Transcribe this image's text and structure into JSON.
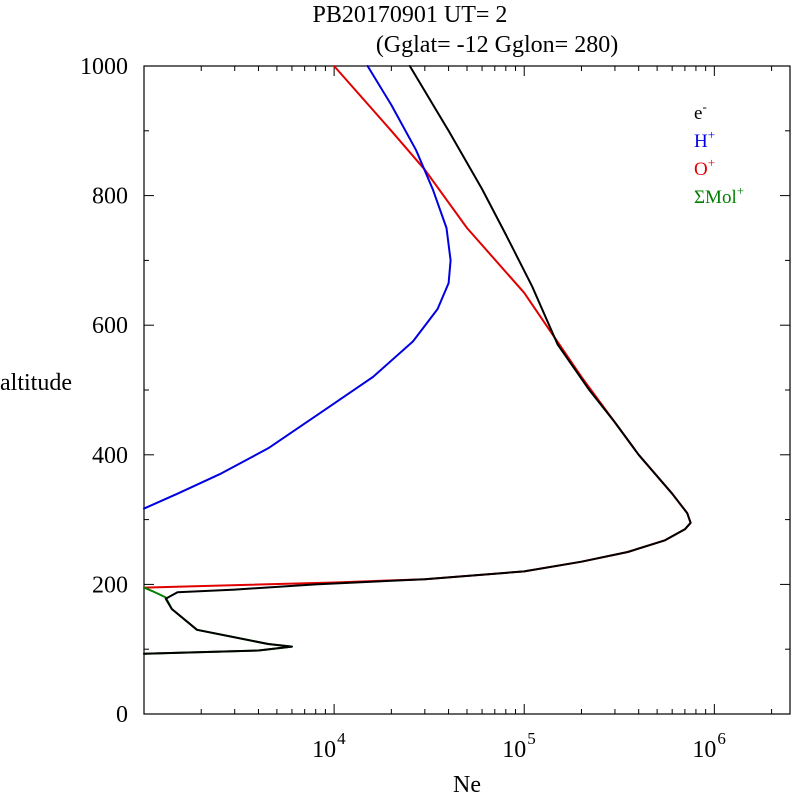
{
  "chart_data": {
    "type": "line",
    "title": "PB20170901   UT=  2",
    "subtitle": "(Gglat= -12   Gglon=  280)",
    "xlabel": "Ne",
    "ylabel": "altitude",
    "x_scale": "log",
    "xlim": [
      1000,
      2500000
    ],
    "ylim": [
      0,
      1000
    ],
    "x_ticks": [
      {
        "value": 10000,
        "base": "10",
        "exp": "4"
      },
      {
        "value": 100000,
        "base": "10",
        "exp": "5"
      },
      {
        "value": 1000000,
        "base": "10",
        "exp": "6"
      }
    ],
    "y_ticks": [
      {
        "value": 0,
        "label": "0"
      },
      {
        "value": 200,
        "label": "200"
      },
      {
        "value": 400,
        "label": "400"
      },
      {
        "value": 600,
        "label": "600"
      },
      {
        "value": 800,
        "label": "800"
      },
      {
        "value": 1000,
        "label": "1000"
      }
    ],
    "legend_position": "top-right",
    "series": [
      {
        "key": "o-plus",
        "name": "O",
        "sup": "+",
        "color": "#e00000",
        "points": [
          [
            1000,
            195
          ],
          [
            10000,
            203
          ],
          [
            30000,
            208
          ],
          [
            100000,
            220
          ],
          [
            200000,
            235
          ],
          [
            350000,
            250
          ],
          [
            550000,
            268
          ],
          [
            700000,
            285
          ],
          [
            750000,
            295
          ],
          [
            720000,
            310
          ],
          [
            600000,
            340
          ],
          [
            400000,
            400
          ],
          [
            300000,
            450
          ],
          [
            200000,
            520
          ],
          [
            100000,
            650
          ],
          [
            50000,
            750
          ],
          [
            30000,
            840
          ],
          [
            20000,
            900
          ],
          [
            10000,
            1000
          ]
        ]
      },
      {
        "key": "h-plus",
        "name": "H",
        "sup": "+",
        "color": "#0000e0",
        "points": [
          [
            1000,
            317
          ],
          [
            1500,
            340
          ],
          [
            2500,
            370
          ],
          [
            4500,
            410
          ],
          [
            9000,
            470
          ],
          [
            16000,
            520
          ],
          [
            26000,
            575
          ],
          [
            35000,
            625
          ],
          [
            40000,
            665
          ],
          [
            41000,
            700
          ],
          [
            39000,
            750
          ],
          [
            33000,
            810
          ],
          [
            27000,
            870
          ],
          [
            20000,
            940
          ],
          [
            15000,
            1000
          ]
        ]
      },
      {
        "key": "mol-plus",
        "name": "ΣMol",
        "sup": "+",
        "color": "#008000",
        "points": [
          [
            1000,
            195
          ],
          [
            1100,
            190
          ],
          [
            1300,
            180
          ],
          [
            1400,
            162
          ],
          [
            1900,
            130
          ],
          [
            4500,
            108
          ],
          [
            6000,
            104
          ],
          [
            4000,
            98
          ],
          [
            1000,
            93
          ]
        ]
      },
      {
        "key": "e-minus",
        "name": "e",
        "sup": "-",
        "color": "#000000",
        "points": [
          [
            1000,
            93
          ],
          [
            4000,
            98
          ],
          [
            6000,
            104
          ],
          [
            4500,
            108
          ],
          [
            1900,
            130
          ],
          [
            1400,
            162
          ],
          [
            1300,
            178
          ],
          [
            1500,
            188
          ],
          [
            3000,
            192
          ],
          [
            8000,
            200
          ],
          [
            30000,
            208
          ],
          [
            100000,
            220
          ],
          [
            200000,
            235
          ],
          [
            350000,
            250
          ],
          [
            550000,
            268
          ],
          [
            700000,
            285
          ],
          [
            750000,
            295
          ],
          [
            720000,
            310
          ],
          [
            600000,
            340
          ],
          [
            400000,
            400
          ],
          [
            300000,
            450
          ],
          [
            220000,
            500
          ],
          [
            150000,
            570
          ],
          [
            110000,
            660
          ],
          [
            80000,
            740
          ],
          [
            60000,
            810
          ],
          [
            40000,
            900
          ],
          [
            25000,
            1000
          ]
        ]
      }
    ]
  }
}
